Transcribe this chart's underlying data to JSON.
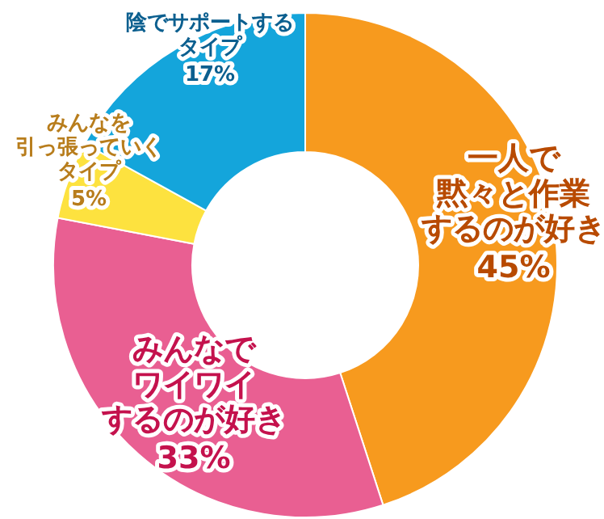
{
  "chart_data": {
    "type": "donut",
    "categories": [
      "一人で黙々と作業するのが好き",
      "みんなでワイワイするのが好き",
      "みんなを引っ張っていくタイプ",
      "陰でサポートするタイプ"
    ],
    "values": [
      45,
      33,
      5,
      17
    ],
    "value_labels": [
      "45%",
      "33%",
      "5%",
      "17%"
    ],
    "colors": [
      "#f79a1e",
      "#e95f92",
      "#fde23f",
      "#14a5db"
    ]
  }
}
